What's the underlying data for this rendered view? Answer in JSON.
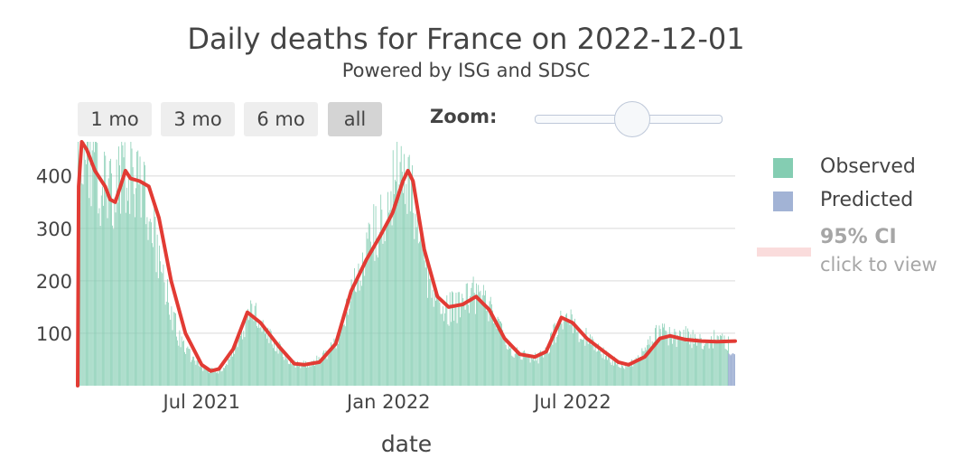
{
  "title": "Daily deaths for France on 2022-12-01",
  "subtitle": "Powered by ISG and SDSC",
  "range_buttons": [
    {
      "label": "1 mo",
      "active": false
    },
    {
      "label": "3 mo",
      "active": false
    },
    {
      "label": "6 mo",
      "active": false
    },
    {
      "label": "all",
      "active": true
    }
  ],
  "zoom": {
    "label": "Zoom:",
    "level": 0.5
  },
  "legend": {
    "observed": "Observed",
    "predicted": "Predicted",
    "ci_title": "95% CI",
    "ci_hint": "click to view"
  },
  "colors": {
    "observed": "#84cdb2",
    "predicted": "#a2b3d5",
    "trend": "#e23b34",
    "ci": "#fadcdc",
    "grid": "#e6e6e6"
  },
  "chart_data": {
    "type": "bar",
    "title": "Daily deaths for France on 2022-12-01",
    "xlabel": "date",
    "ylabel": "",
    "x_range": [
      "2021-03-01",
      "2022-12-08"
    ],
    "ylim": [
      0,
      465
    ],
    "yticks": [
      100,
      200,
      300,
      400
    ],
    "xtick_labels": [
      {
        "date": "2021-07-01",
        "label": "Jul 2021"
      },
      {
        "date": "2022-01-01",
        "label": "Jan 2022"
      },
      {
        "date": "2022-07-01",
        "label": "Jul 2022"
      }
    ],
    "series": [
      {
        "name": "Observed",
        "kind": "bar",
        "note": "daily bars, approximated as weekly points",
        "points": [
          [
            "2021-03-01",
            430
          ],
          [
            "2021-03-08",
            460
          ],
          [
            "2021-03-15",
            420
          ],
          [
            "2021-03-22",
            390
          ],
          [
            "2021-03-29",
            360
          ],
          [
            "2021-04-05",
            360
          ],
          [
            "2021-04-12",
            420
          ],
          [
            "2021-04-19",
            400
          ],
          [
            "2021-04-26",
            390
          ],
          [
            "2021-05-03",
            380
          ],
          [
            "2021-05-10",
            330
          ],
          [
            "2021-05-17",
            270
          ],
          [
            "2021-05-24",
            200
          ],
          [
            "2021-05-31",
            150
          ],
          [
            "2021-06-07",
            100
          ],
          [
            "2021-06-14",
            75
          ],
          [
            "2021-06-21",
            55
          ],
          [
            "2021-06-28",
            40
          ],
          [
            "2021-07-05",
            32
          ],
          [
            "2021-07-12",
            28
          ],
          [
            "2021-07-19",
            30
          ],
          [
            "2021-07-26",
            45
          ],
          [
            "2021-08-02",
            70
          ],
          [
            "2021-08-09",
            100
          ],
          [
            "2021-08-16",
            140
          ],
          [
            "2021-08-23",
            130
          ],
          [
            "2021-08-30",
            110
          ],
          [
            "2021-09-06",
            95
          ],
          [
            "2021-09-13",
            75
          ],
          [
            "2021-09-20",
            55
          ],
          [
            "2021-09-27",
            42
          ],
          [
            "2021-10-04",
            38
          ],
          [
            "2021-10-11",
            40
          ],
          [
            "2021-10-18",
            45
          ],
          [
            "2021-10-25",
            50
          ],
          [
            "2021-11-01",
            60
          ],
          [
            "2021-11-08",
            80
          ],
          [
            "2021-11-15",
            110
          ],
          [
            "2021-11-22",
            160
          ],
          [
            "2021-11-29",
            200
          ],
          [
            "2021-12-06",
            240
          ],
          [
            "2021-12-13",
            270
          ],
          [
            "2021-12-20",
            300
          ],
          [
            "2021-12-27",
            330
          ],
          [
            "2022-01-03",
            360
          ],
          [
            "2022-01-10",
            400
          ],
          [
            "2022-01-17",
            420
          ],
          [
            "2022-01-24",
            370
          ],
          [
            "2022-01-31",
            300
          ],
          [
            "2022-02-07",
            220
          ],
          [
            "2022-02-14",
            180
          ],
          [
            "2022-02-21",
            160
          ],
          [
            "2022-02-28",
            145
          ],
          [
            "2022-03-07",
            150
          ],
          [
            "2022-03-14",
            155
          ],
          [
            "2022-03-21",
            165
          ],
          [
            "2022-03-28",
            175
          ],
          [
            "2022-04-04",
            160
          ],
          [
            "2022-04-11",
            140
          ],
          [
            "2022-04-18",
            115
          ],
          [
            "2022-04-25",
            90
          ],
          [
            "2022-05-02",
            70
          ],
          [
            "2022-05-09",
            58
          ],
          [
            "2022-05-16",
            55
          ],
          [
            "2022-05-23",
            52
          ],
          [
            "2022-05-30",
            55
          ],
          [
            "2022-06-06",
            70
          ],
          [
            "2022-06-13",
            100
          ],
          [
            "2022-06-20",
            130
          ],
          [
            "2022-06-27",
            125
          ],
          [
            "2022-07-04",
            110
          ],
          [
            "2022-07-11",
            95
          ],
          [
            "2022-07-18",
            85
          ],
          [
            "2022-07-25",
            72
          ],
          [
            "2022-08-01",
            60
          ],
          [
            "2022-08-08",
            50
          ],
          [
            "2022-08-15",
            40
          ],
          [
            "2022-08-22",
            38
          ],
          [
            "2022-08-29",
            45
          ],
          [
            "2022-09-05",
            60
          ],
          [
            "2022-09-12",
            75
          ],
          [
            "2022-09-19",
            95
          ],
          [
            "2022-09-26",
            100
          ],
          [
            "2022-10-03",
            95
          ],
          [
            "2022-10-10",
            90
          ],
          [
            "2022-10-17",
            92
          ],
          [
            "2022-10-24",
            95
          ],
          [
            "2022-10-31",
            85
          ],
          [
            "2022-11-07",
            88
          ],
          [
            "2022-11-14",
            90
          ],
          [
            "2022-11-21",
            88
          ],
          [
            "2022-11-28",
            85
          ]
        ]
      },
      {
        "name": "Predicted",
        "kind": "bar",
        "points": [
          [
            "2022-12-01",
            62
          ],
          [
            "2022-12-02",
            60
          ],
          [
            "2022-12-03",
            58
          ],
          [
            "2022-12-04",
            60
          ],
          [
            "2022-12-05",
            62
          ],
          [
            "2022-12-06",
            61
          ],
          [
            "2022-12-07",
            60
          ]
        ]
      },
      {
        "name": "Trend",
        "kind": "line",
        "points": [
          [
            "2021-03-01",
            0
          ],
          [
            "2021-03-02",
            380
          ],
          [
            "2021-03-05",
            470
          ],
          [
            "2021-03-10",
            450
          ],
          [
            "2021-03-18",
            410
          ],
          [
            "2021-03-28",
            380
          ],
          [
            "2021-04-02",
            355
          ],
          [
            "2021-04-07",
            350
          ],
          [
            "2021-04-12",
            380
          ],
          [
            "2021-04-17",
            410
          ],
          [
            "2021-04-22",
            395
          ],
          [
            "2021-05-01",
            390
          ],
          [
            "2021-05-10",
            380
          ],
          [
            "2021-05-20",
            320
          ],
          [
            "2021-06-01",
            200
          ],
          [
            "2021-06-15",
            100
          ],
          [
            "2021-07-01",
            40
          ],
          [
            "2021-07-10",
            28
          ],
          [
            "2021-07-18",
            32
          ],
          [
            "2021-08-01",
            70
          ],
          [
            "2021-08-15",
            140
          ],
          [
            "2021-08-28",
            120
          ],
          [
            "2021-09-15",
            75
          ],
          [
            "2021-09-30",
            42
          ],
          [
            "2021-10-10",
            40
          ],
          [
            "2021-10-25",
            45
          ],
          [
            "2021-11-10",
            80
          ],
          [
            "2021-11-25",
            180
          ],
          [
            "2021-12-10",
            240
          ],
          [
            "2021-12-25",
            290
          ],
          [
            "2022-01-05",
            330
          ],
          [
            "2022-01-15",
            390
          ],
          [
            "2022-01-20",
            410
          ],
          [
            "2022-01-25",
            390
          ],
          [
            "2022-02-05",
            260
          ],
          [
            "2022-02-18",
            170
          ],
          [
            "2022-03-01",
            150
          ],
          [
            "2022-03-15",
            155
          ],
          [
            "2022-03-28",
            170
          ],
          [
            "2022-04-10",
            145
          ],
          [
            "2022-04-25",
            90
          ],
          [
            "2022-05-10",
            60
          ],
          [
            "2022-05-25",
            55
          ],
          [
            "2022-06-05",
            65
          ],
          [
            "2022-06-20",
            130
          ],
          [
            "2022-07-01",
            120
          ],
          [
            "2022-07-15",
            90
          ],
          [
            "2022-08-01",
            65
          ],
          [
            "2022-08-15",
            45
          ],
          [
            "2022-08-25",
            40
          ],
          [
            "2022-09-10",
            55
          ],
          [
            "2022-09-25",
            90
          ],
          [
            "2022-10-05",
            95
          ],
          [
            "2022-10-20",
            88
          ],
          [
            "2022-11-05",
            85
          ],
          [
            "2022-11-20",
            84
          ],
          [
            "2022-12-08",
            85
          ]
        ]
      }
    ]
  }
}
